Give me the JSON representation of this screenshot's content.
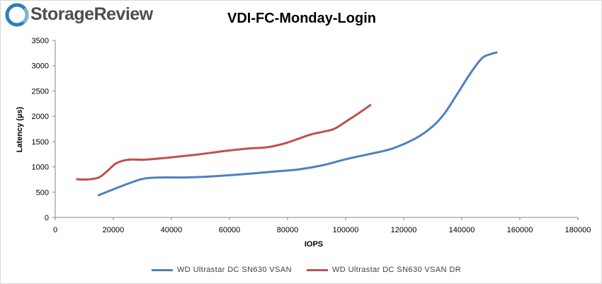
{
  "brand": {
    "name": "StorageReview",
    "icon": "storagereview-logo-icon"
  },
  "chart_data": {
    "type": "line",
    "title": "VDI-FC-Monday-Login",
    "xlabel": "IOPS",
    "ylabel": "Latency (µs)",
    "xlim": [
      0,
      180000
    ],
    "ylim": [
      0,
      3500
    ],
    "x_ticks": [
      0,
      20000,
      40000,
      60000,
      80000,
      100000,
      120000,
      140000,
      160000,
      180000
    ],
    "y_ticks": [
      0,
      500,
      1000,
      1500,
      2000,
      2500,
      3000,
      3500
    ],
    "grid": false,
    "legend_position": "bottom",
    "series": [
      {
        "name": "WD Ultrastar DC SN630 VSAN",
        "color": "#4f81bd",
        "x": [
          15000,
          22000,
          30000,
          36000,
          44000,
          52000,
          60000,
          68000,
          76000,
          84000,
          92000,
          100000,
          108000,
          116000,
          124000,
          130000,
          134000,
          138000,
          143000,
          147000,
          150000,
          152000
        ],
        "y": [
          440,
          600,
          760,
          790,
          790,
          805,
          835,
          870,
          910,
          950,
          1030,
          1150,
          1250,
          1360,
          1560,
          1800,
          2050,
          2400,
          2850,
          3150,
          3230,
          3260
        ]
      },
      {
        "name": "WD Ultrastar DC SN630 VSAN DR",
        "color": "#c0504d",
        "x": [
          7500,
          11000,
          15000,
          18000,
          21000,
          25000,
          30000,
          35000,
          42000,
          50000,
          58000,
          66000,
          72000,
          76000,
          80000,
          84000,
          88000,
          92000,
          96000,
          100000,
          104000,
          108500
        ],
        "y": [
          755,
          750,
          790,
          920,
          1070,
          1140,
          1140,
          1160,
          1200,
          1250,
          1310,
          1360,
          1380,
          1420,
          1480,
          1560,
          1640,
          1690,
          1750,
          1890,
          2040,
          2220
        ]
      }
    ]
  }
}
